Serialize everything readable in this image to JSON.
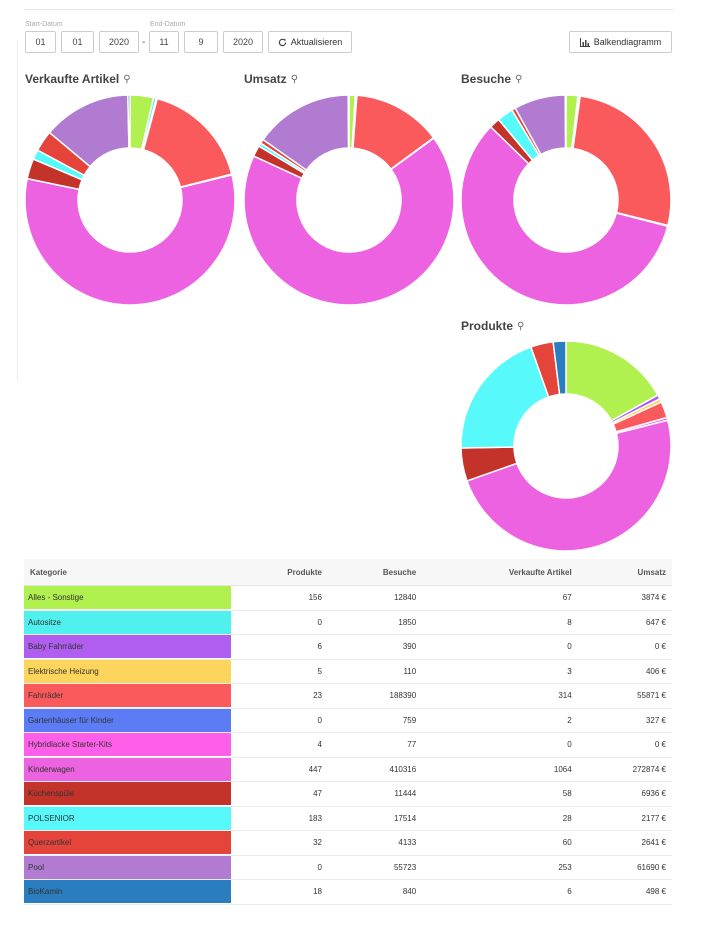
{
  "filters": {
    "start_label": "Start-Datum",
    "end_label": "End-Datum",
    "start": {
      "day": "01",
      "month": "01",
      "year": "2020"
    },
    "end": {
      "day": "11",
      "month": "9",
      "year": "2020"
    },
    "separator": "-",
    "refresh_label": "Aktualisieren",
    "bar_chart_label": "Balkendiagramm"
  },
  "icons": {
    "refresh": "refresh-icon",
    "bar_chart": "bar-chart-icon",
    "zoom": "zoom-in-icon"
  },
  "chart_data": [
    {
      "type": "pie",
      "title": "Verkaufte Artikel",
      "categories": [
        "Alles - Sonstige",
        "Autositze",
        "Baby Fahrräder",
        "Elektrische Heizung",
        "Fahrräder",
        "Gartenhäuser für Kinder",
        "Hybridlacke Starter-Kits",
        "Kinderwagen",
        "Küchenspüle",
        "POLSENIOR",
        "Querzartikel",
        "Pool",
        "BioKamin"
      ],
      "values": [
        67,
        8,
        0,
        3,
        314,
        2,
        0,
        1064,
        58,
        28,
        60,
        253,
        6
      ]
    },
    {
      "type": "pie",
      "title": "Umsatz",
      "categories": [
        "Alles - Sonstige",
        "Autositze",
        "Baby Fahrräder",
        "Elektrische Heizung",
        "Fahrräder",
        "Gartenhäuser für Kinder",
        "Hybridlacke Starter-Kits",
        "Kinderwagen",
        "Küchenspüle",
        "POLSENIOR",
        "Querzartikel",
        "Pool",
        "BioKamin"
      ],
      "values": [
        3874,
        647,
        0,
        406,
        55871,
        327,
        0,
        272874,
        6936,
        2177,
        2641,
        61690,
        498
      ]
    },
    {
      "type": "pie",
      "title": "Besuche",
      "categories": [
        "Alles - Sonstige",
        "Autositze",
        "Baby Fahrräder",
        "Elektrische Heizung",
        "Fahrräder",
        "Gartenhäuser für Kinder",
        "Hybridlacke Starter-Kits",
        "Kinderwagen",
        "Küchenspüle",
        "POLSENIOR",
        "Querzartikel",
        "Pool",
        "BioKamin"
      ],
      "values": [
        12840,
        1850,
        390,
        110,
        188390,
        759,
        77,
        410316,
        11444,
        17514,
        4133,
        55723,
        840
      ]
    },
    {
      "type": "pie",
      "title": "Produkte",
      "categories": [
        "Alles - Sonstige",
        "Autositze",
        "Baby Fahrräder",
        "Elektrische Heizung",
        "Fahrräder",
        "Gartenhäuser für Kinder",
        "Hybridlacke Starter-Kits",
        "Kinderwagen",
        "Küchenspüle",
        "POLSENIOR",
        "Querzartikel",
        "Pool",
        "BioKamin"
      ],
      "values": [
        156,
        0,
        6,
        5,
        23,
        0,
        4,
        447,
        47,
        183,
        32,
        0,
        18
      ]
    },
    {
      "type": "table",
      "columns": [
        "Kategorie",
        "Produkte",
        "Besuche",
        "Verkaufte Artikel",
        "Umsatz"
      ],
      "rows": [
        {
          "name": "Alles - Sonstige",
          "color": "#b0f04f",
          "produkte": "156",
          "besuche": "12840",
          "artikel": "67",
          "umsatz": "3874 €"
        },
        {
          "name": "Autositze",
          "color": "#4ff0ee",
          "produkte": "0",
          "besuche": "1850",
          "artikel": "8",
          "umsatz": "647 €"
        },
        {
          "name": "Baby Fahrräder",
          "color": "#b05ef0",
          "produkte": "6",
          "besuche": "390",
          "artikel": "0",
          "umsatz": "0 €"
        },
        {
          "name": "Elektrische Heizung",
          "color": "#fed55c",
          "produkte": "5",
          "besuche": "110",
          "artikel": "3",
          "umsatz": "406 €"
        },
        {
          "name": "Fahrräder",
          "color": "#fb5a5d",
          "produkte": "23",
          "besuche": "188390",
          "artikel": "314",
          "umsatz": "55871 €"
        },
        {
          "name": "Gartenhäuser für Kinder",
          "color": "#5b7cf5",
          "produkte": "0",
          "besuche": "759",
          "artikel": "2",
          "umsatz": "327 €"
        },
        {
          "name": "Hybridlacke Starter-Kits",
          "color": "#ff5fe8",
          "produkte": "4",
          "besuche": "77",
          "artikel": "0",
          "umsatz": "0 €"
        },
        {
          "name": "Kinderwagen",
          "color": "#ec62e0",
          "produkte": "447",
          "besuche": "410316",
          "artikel": "1064",
          "umsatz": "272874 €"
        },
        {
          "name": "Küchenspüle",
          "color": "#c4332a",
          "produkte": "47",
          "besuche": "11444",
          "artikel": "58",
          "umsatz": "6936 €"
        },
        {
          "name": "POLSENIOR",
          "color": "#58f9fb",
          "produkte": "183",
          "besuche": "17514",
          "artikel": "28",
          "umsatz": "2177 €"
        },
        {
          "name": "Querzartikel",
          "color": "#e5443b",
          "produkte": "32",
          "besuche": "4133",
          "artikel": "60",
          "umsatz": "2641 €"
        },
        {
          "name": "Pool",
          "color": "#b07bd0",
          "produkte": "0",
          "besuche": "55723",
          "artikel": "253",
          "umsatz": "61690 €"
        },
        {
          "name": "BioKamin",
          "color": "#2a7dbf",
          "produkte": "18",
          "besuche": "840",
          "artikel": "6",
          "umsatz": "498 €"
        }
      ]
    }
  ]
}
